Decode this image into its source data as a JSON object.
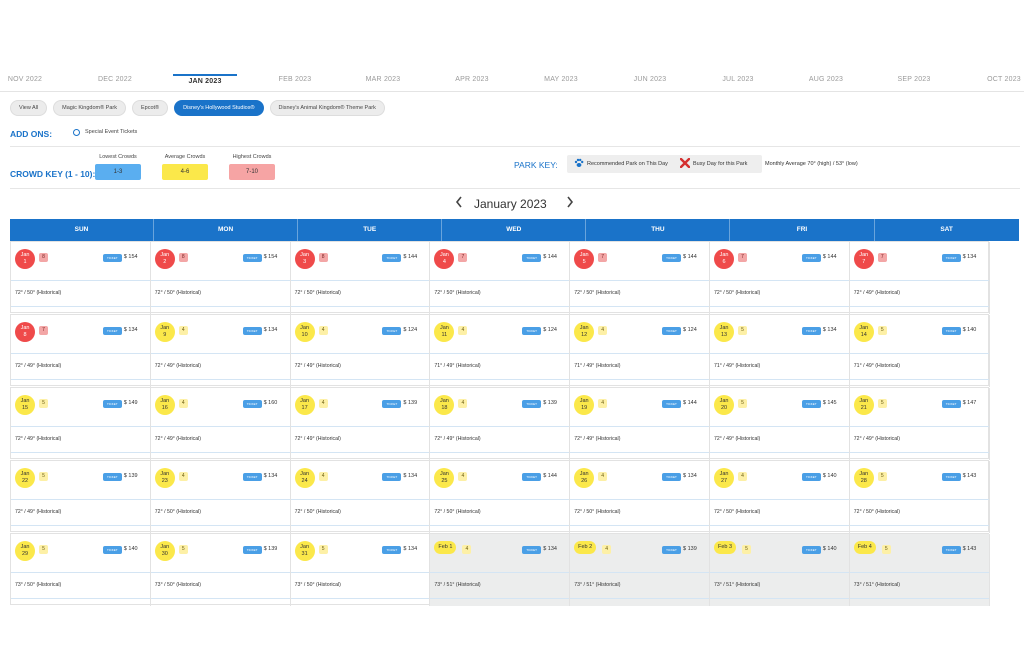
{
  "months": [
    "NOV 2022",
    "DEC 2022",
    "JAN 2023",
    "FEB 2023",
    "MAR 2023",
    "APR 2023",
    "MAY 2023",
    "JUN 2023",
    "JUL 2023",
    "AUG 2023",
    "SEP 2023",
    "OCT 2023"
  ],
  "active_month": "JAN 2023",
  "parks": [
    "View All",
    "Magic Kingdom® Park",
    "Epcot®",
    "Disney's Hollywood Studios®",
    "Disney's Animal Kingdom® Theme Park"
  ],
  "active_park": "Disney's Hollywood Studios®",
  "addons": {
    "label": "ADD ONS:",
    "option": "Special Event Tickets"
  },
  "crowd_key": {
    "label": "CROWD KEY (1 - 10):",
    "levels": [
      {
        "title": "Lowest Crowds",
        "range": "1-3",
        "color": "#5aaef0"
      },
      {
        "title": "Average Crowds",
        "range": "4-6",
        "color": "#fbe84a"
      },
      {
        "title": "Highest Crowds",
        "range": "7-10",
        "color": "#f6a4a4"
      }
    ]
  },
  "park_key": {
    "label": "PARK KEY:",
    "recommended": "Recommended Park on This Day",
    "busy": "Busy Day for this Park",
    "monthly_average": "Monthly Average 70° (high) / 53° (low)"
  },
  "calendar": {
    "title": "January 2023",
    "prev_icon": "chevron-left-icon",
    "next_icon": "chevron-right-icon",
    "days": [
      "SUN",
      "MON",
      "TUE",
      "WED",
      "THU",
      "FRI",
      "SAT"
    ],
    "ticket_label": "TICKET",
    "weeks": [
      [
        {
          "date": "Jan 1",
          "crowd": "8",
          "level": "red",
          "price": "$ 154",
          "weather": "72° / 50° (Historical)"
        },
        {
          "date": "Jan 2",
          "crowd": "8",
          "level": "red",
          "price": "$ 154",
          "weather": "72° / 50° (Historical)"
        },
        {
          "date": "Jan 3",
          "crowd": "8",
          "level": "red",
          "price": "$ 144",
          "weather": "72° / 50° (Historical)"
        },
        {
          "date": "Jan 4",
          "crowd": "7",
          "level": "red",
          "price": "$ 144",
          "weather": "72° / 50° (Historical)"
        },
        {
          "date": "Jan 5",
          "crowd": "7",
          "level": "red",
          "price": "$ 144",
          "weather": "72° / 50° (Historical)"
        },
        {
          "date": "Jan 6",
          "crowd": "7",
          "level": "red",
          "price": "$ 144",
          "weather": "72° / 50° (Historical)"
        },
        {
          "date": "Jan 7",
          "crowd": "7",
          "level": "red",
          "price": "$ 134",
          "weather": "72° / 49° (Historical)"
        }
      ],
      [
        {
          "date": "Jan 8",
          "crowd": "7",
          "level": "red",
          "price": "$ 134",
          "weather": "72° / 49° (Historical)"
        },
        {
          "date": "Jan 9",
          "crowd": "4",
          "level": "yellow",
          "price": "$ 134",
          "weather": "72° / 49° (Historical)"
        },
        {
          "date": "Jan 10",
          "crowd": "4",
          "level": "yellow",
          "price": "$ 124",
          "weather": "72° / 49° (Historical)"
        },
        {
          "date": "Jan 11",
          "crowd": "4",
          "level": "yellow",
          "price": "$ 124",
          "weather": "71° / 49° (Historical)"
        },
        {
          "date": "Jan 12",
          "crowd": "4",
          "level": "yellow",
          "price": "$ 124",
          "weather": "71° / 49° (Historical)"
        },
        {
          "date": "Jan 13",
          "crowd": "5",
          "level": "yellow",
          "price": "$ 134",
          "weather": "71° / 49° (Historical)"
        },
        {
          "date": "Jan 14",
          "crowd": "5",
          "level": "yellow",
          "price": "$ 140",
          "weather": "71° / 49° (Historical)"
        }
      ],
      [
        {
          "date": "Jan 15",
          "crowd": "5",
          "level": "yellow",
          "price": "$ 149",
          "weather": "72° / 49° (Historical)"
        },
        {
          "date": "Jan 16",
          "crowd": "4",
          "level": "yellow",
          "price": "$ 160",
          "weather": "72° / 49° (Historical)"
        },
        {
          "date": "Jan 17",
          "crowd": "4",
          "level": "yellow",
          "price": "$ 139",
          "weather": "72° / 49° (Historical)"
        },
        {
          "date": "Jan 18",
          "crowd": "4",
          "level": "yellow",
          "price": "$ 139",
          "weather": "72° / 49° (Historical)"
        },
        {
          "date": "Jan 19",
          "crowd": "4",
          "level": "yellow",
          "price": "$ 144",
          "weather": "72° / 49° (Historical)"
        },
        {
          "date": "Jan 20",
          "crowd": "5",
          "level": "yellow",
          "price": "$ 145",
          "weather": "72° / 49° (Historical)"
        },
        {
          "date": "Jan 21",
          "crowd": "5",
          "level": "yellow",
          "price": "$ 147",
          "weather": "72° / 49° (Historical)"
        }
      ],
      [
        {
          "date": "Jan 22",
          "crowd": "5",
          "level": "yellow",
          "price": "$ 139",
          "weather": "72° / 49° (Historical)"
        },
        {
          "date": "Jan 23",
          "crowd": "4",
          "level": "yellow",
          "price": "$ 134",
          "weather": "72° / 50° (Historical)"
        },
        {
          "date": "Jan 24",
          "crowd": "4",
          "level": "yellow",
          "price": "$ 134",
          "weather": "72° / 50° (Historical)"
        },
        {
          "date": "Jan 25",
          "crowd": "4",
          "level": "yellow",
          "price": "$ 144",
          "weather": "72° / 50° (Historical)"
        },
        {
          "date": "Jan 26",
          "crowd": "4",
          "level": "yellow",
          "price": "$ 134",
          "weather": "72° / 50° (Historical)"
        },
        {
          "date": "Jan 27",
          "crowd": "4",
          "level": "yellow",
          "price": "$ 140",
          "weather": "72° / 50° (Historical)"
        },
        {
          "date": "Jan 28",
          "crowd": "5",
          "level": "yellow",
          "price": "$ 143",
          "weather": "72° / 50° (Historical)"
        }
      ],
      [
        {
          "date": "Jan 29",
          "crowd": "5",
          "level": "yellow",
          "price": "$ 140",
          "weather": "73° / 50° (Historical)"
        },
        {
          "date": "Jan 30",
          "crowd": "5",
          "level": "yellow",
          "price": "$ 139",
          "weather": "73° / 50° (Historical)"
        },
        {
          "date": "Jan 31",
          "crowd": "5",
          "level": "yellow",
          "price": "$ 134",
          "weather": "73° / 50° (Historical)"
        },
        {
          "date": "Feb 1",
          "crowd": "4",
          "level": "yellow",
          "price": "$ 134",
          "weather": "73° / 51° (Historical)",
          "other_month": true
        },
        {
          "date": "Feb 2",
          "crowd": "4",
          "level": "yellow",
          "price": "$ 139",
          "weather": "73° / 51° (Historical)",
          "other_month": true
        },
        {
          "date": "Feb 3",
          "crowd": "5",
          "level": "yellow",
          "price": "$ 140",
          "weather": "73° / 51° (Historical)",
          "other_month": true
        },
        {
          "date": "Feb 4",
          "crowd": "5",
          "level": "yellow",
          "price": "$ 143",
          "weather": "73° / 51° (Historical)",
          "other_month": true
        }
      ]
    ]
  }
}
